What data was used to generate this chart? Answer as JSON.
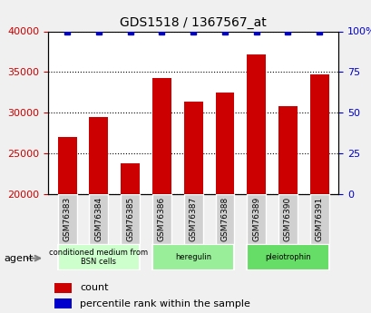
{
  "title": "GDS1518 / 1367567_at",
  "categories": [
    "GSM76383",
    "GSM76384",
    "GSM76385",
    "GSM76386",
    "GSM76387",
    "GSM76388",
    "GSM76389",
    "GSM76390",
    "GSM76391"
  ],
  "count_values": [
    27000,
    29500,
    23800,
    34300,
    31400,
    32500,
    37200,
    30800,
    34700
  ],
  "percentile_values": [
    100,
    100,
    100,
    100,
    100,
    100,
    100,
    100,
    100
  ],
  "bar_color": "#cc0000",
  "dot_color": "#0000cc",
  "ylim_left": [
    20000,
    40000
  ],
  "ylim_right": [
    0,
    100
  ],
  "yticks_left": [
    20000,
    25000,
    30000,
    35000,
    40000
  ],
  "yticks_right": [
    0,
    25,
    50,
    75,
    100
  ],
  "groups": [
    {
      "label": "conditioned medium from\nBSN cells",
      "indices": [
        0,
        1,
        2
      ],
      "color": "#ccffcc"
    },
    {
      "label": "heregulin",
      "indices": [
        3,
        4,
        5
      ],
      "color": "#99ee99"
    },
    {
      "label": "pleiotrophin",
      "indices": [
        6,
        7,
        8
      ],
      "color": "#66dd66"
    }
  ],
  "agent_label": "agent",
  "legend_count_label": "count",
  "legend_percentile_label": "percentile rank within the sample",
  "background_color": "#e8e8e8",
  "plot_bg_color": "#ffffff"
}
